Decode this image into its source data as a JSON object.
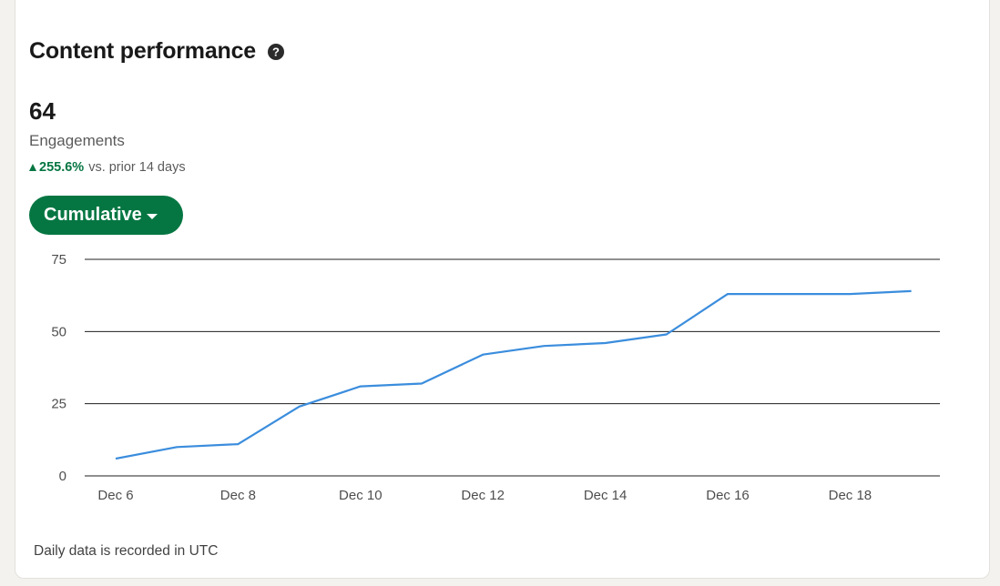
{
  "card": {
    "title": "Content performance",
    "help_icon": "question-circle-icon"
  },
  "metric": {
    "value": "64",
    "label": "Engagements",
    "delta_pct": "255.6%",
    "delta_text": "vs. prior 14 days",
    "delta_direction": "up",
    "delta_color": "#057642"
  },
  "mode_button": {
    "label": "Cumulative",
    "color": "#057642"
  },
  "footnote": "Daily data is recorded in UTC",
  "chart_data": {
    "type": "line",
    "title": "",
    "xlabel": "",
    "ylabel": "",
    "grid": true,
    "line_color": "#3b8ddd",
    "x_ticks": [
      "Dec 6",
      "Dec 8",
      "Dec 10",
      "Dec 12",
      "Dec 14",
      "Dec 16",
      "Dec 18"
    ],
    "y_ticks": [
      0,
      25,
      50,
      75
    ],
    "ylim": [
      0,
      75
    ],
    "x": [
      "Dec 6",
      "Dec 7",
      "Dec 8",
      "Dec 9",
      "Dec 10",
      "Dec 11",
      "Dec 12",
      "Dec 13",
      "Dec 14",
      "Dec 15",
      "Dec 16",
      "Dec 17",
      "Dec 18",
      "Dec 19"
    ],
    "series": [
      {
        "values": [
          6,
          10,
          11,
          24,
          31,
          32,
          42,
          45,
          46,
          49,
          63,
          63,
          63,
          64
        ]
      }
    ]
  }
}
